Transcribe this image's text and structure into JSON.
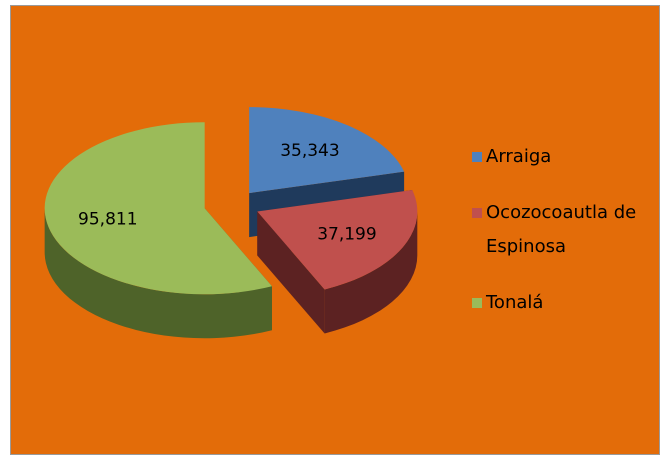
{
  "chart_data": {
    "type": "pie3d",
    "categories": [
      "Arraiga",
      "Ocozocoautla de Espinosa",
      "Tonalá"
    ],
    "values": [
      35343,
      37199,
      95811
    ],
    "value_labels": [
      "35,343",
      "37,199",
      "95,811"
    ],
    "colors": [
      "#4F81BD",
      "#C0504D",
      "#9BBB59"
    ],
    "side_colors": [
      "#1F3A5C",
      "#5C2222",
      "#4E6329"
    ],
    "legend": "right"
  }
}
